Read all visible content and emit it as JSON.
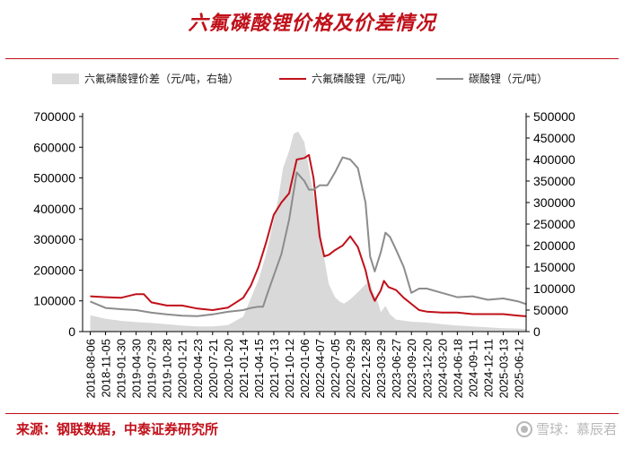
{
  "chart_data": {
    "type": "line",
    "title": "六氟磷酸锂价格及价差情况",
    "legend_position": "top",
    "grid": false,
    "x_ticks": [
      "2018-08-06",
      "2018-11-05",
      "2019-01-30",
      "2019-04-30",
      "2019-07-29",
      "2019-10-28",
      "2020-01-21",
      "2020-04-23",
      "2020-07-21",
      "2020-10-20",
      "2021-01-14",
      "2021-04-15",
      "2021-07-13",
      "2021-10-12",
      "2022-01-06",
      "2022-04-07",
      "2022-07-05",
      "2022-09-29",
      "2022-12-28",
      "2023-03-29",
      "2023-06-27",
      "2023-09-20",
      "2023-12-20",
      "2024-03-20",
      "2024-06-18",
      "2024-09-11",
      "2024-12-11",
      "2025-03-13",
      "2025-06-12"
    ],
    "y_left": {
      "ticks": [
        0,
        100000,
        200000,
        300000,
        400000,
        500000,
        600000,
        700000
      ],
      "range": [
        0,
        700000
      ]
    },
    "y_right": {
      "ticks": [
        0,
        50000,
        100000,
        150000,
        200000,
        250000,
        300000,
        350000,
        400000,
        450000,
        500000
      ],
      "range": [
        0,
        500000
      ]
    },
    "series": [
      {
        "name": "六氟磷酸锂价差（元/吨，右轴）",
        "type": "area",
        "axis": "right",
        "color": "#d9d9d9",
        "x": [
          0,
          1,
          2,
          3,
          4,
          5,
          6,
          7,
          8,
          9,
          10,
          11,
          11.5,
          12,
          12.3,
          12.6,
          13,
          13.3,
          13.6,
          14,
          14.3,
          14.6,
          15,
          15.3,
          15.6,
          16,
          16.3,
          16.6,
          17,
          17.3,
          17.6,
          18,
          18.3,
          18.5,
          18.8,
          19,
          19.3,
          19.6,
          20,
          21,
          22,
          23,
          24,
          25,
          26,
          27,
          28,
          28.5
        ],
        "values": [
          38000,
          30000,
          25000,
          22000,
          20000,
          17000,
          14000,
          12000,
          12000,
          15000,
          35000,
          120000,
          180000,
          260000,
          310000,
          380000,
          420000,
          460000,
          465000,
          440000,
          380000,
          320000,
          250000,
          170000,
          110000,
          80000,
          70000,
          65000,
          75000,
          85000,
          95000,
          110000,
          115000,
          90000,
          70000,
          45000,
          60000,
          40000,
          28000,
          23000,
          21000,
          17000,
          14000,
          12000,
          10000,
          8000,
          7000,
          6000
        ]
      },
      {
        "name": "六氟磷酸锂（元/吨）",
        "type": "line",
        "axis": "left",
        "color": "#c0101a",
        "x": [
          0,
          1,
          2,
          3,
          3.5,
          4,
          5,
          6,
          7,
          8,
          9,
          10,
          10.5,
          11,
          11.5,
          12,
          12.5,
          13,
          13.5,
          14,
          14.3,
          14.6,
          15,
          15.3,
          15.6,
          16,
          16.5,
          17,
          17.5,
          18,
          18.3,
          18.6,
          19,
          19.2,
          19.5,
          20,
          20.5,
          21,
          21.5,
          22,
          23,
          24,
          25,
          26,
          27,
          28,
          28.5
        ],
        "values": [
          115000,
          112000,
          110000,
          122000,
          122000,
          95000,
          85000,
          85000,
          75000,
          70000,
          78000,
          110000,
          150000,
          210000,
          290000,
          380000,
          420000,
          450000,
          560000,
          565000,
          575000,
          500000,
          310000,
          245000,
          250000,
          265000,
          280000,
          310000,
          275000,
          200000,
          135000,
          100000,
          135000,
          165000,
          145000,
          135000,
          110000,
          90000,
          70000,
          65000,
          62000,
          62000,
          57000,
          57000,
          57000,
          52000,
          50000
        ]
      },
      {
        "name": "碳酸锂（元/吨）",
        "type": "line",
        "axis": "right",
        "color": "#8c8c8c",
        "x": [
          0,
          1,
          2,
          3,
          4,
          5,
          6,
          7,
          8,
          9,
          10,
          10.5,
          11,
          11.3,
          11.6,
          12,
          12.5,
          13,
          13.5,
          14,
          14.3,
          14.6,
          15,
          15.5,
          16,
          16.5,
          17,
          17.5,
          18,
          18.3,
          18.6,
          19,
          19.3,
          19.6,
          20,
          20.5,
          21,
          21.5,
          22,
          23,
          24,
          25,
          26,
          27,
          28,
          28.5
        ],
        "values": [
          70000,
          55000,
          52000,
          50000,
          44000,
          40000,
          37000,
          36000,
          40000,
          46000,
          50000,
          55000,
          58000,
          58000,
          90000,
          130000,
          180000,
          260000,
          370000,
          350000,
          330000,
          330000,
          340000,
          340000,
          370000,
          405000,
          400000,
          380000,
          300000,
          175000,
          140000,
          185000,
          230000,
          220000,
          190000,
          150000,
          90000,
          100000,
          100000,
          90000,
          80000,
          82000,
          74000,
          77000,
          70000,
          64000
        ]
      }
    ]
  },
  "source_text": "来源：钢联数据，中泰证券研究所",
  "watermark_text": "雪球：慕辰君"
}
